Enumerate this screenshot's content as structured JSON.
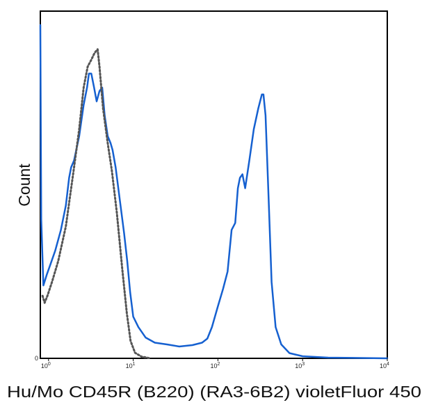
{
  "chart_data": {
    "type": "line",
    "title": "",
    "xlabel": "Hu/Mo CD45R (B220) (RA3-6B2) violetFluor 450",
    "ylabel": "Count",
    "x_scale": "log",
    "xlim": [
      0.8,
      10000
    ],
    "ylim": [
      0,
      100
    ],
    "x_ticks": [
      {
        "value": 1,
        "base": "10",
        "exp": "0"
      },
      {
        "value": 10,
        "base": "10",
        "exp": "1"
      },
      {
        "value": 100,
        "base": "10",
        "exp": "2"
      },
      {
        "value": 1000,
        "base": "10",
        "exp": "3"
      },
      {
        "value": 10000,
        "base": "10",
        "exp": "4"
      }
    ],
    "y_ticks": [
      {
        "value": 0,
        "label": "0"
      }
    ],
    "grid": false,
    "legend": "none",
    "series": [
      {
        "color": "#1560d0",
        "style": "solid",
        "points": [
          [
            0.8,
            96
          ],
          [
            0.82,
            40
          ],
          [
            0.87,
            21
          ],
          [
            0.95,
            24
          ],
          [
            1.05,
            27
          ],
          [
            1.2,
            31
          ],
          [
            1.4,
            37
          ],
          [
            1.6,
            44
          ],
          [
            1.75,
            52
          ],
          [
            1.85,
            55
          ],
          [
            2.0,
            57
          ],
          [
            2.3,
            64
          ],
          [
            2.6,
            73
          ],
          [
            2.85,
            78
          ],
          [
            3.0,
            82
          ],
          [
            3.2,
            82
          ],
          [
            3.45,
            78
          ],
          [
            3.7,
            74
          ],
          [
            4.0,
            77
          ],
          [
            4.3,
            78
          ],
          [
            4.6,
            70
          ],
          [
            5.0,
            64
          ],
          [
            5.4,
            62
          ],
          [
            5.7,
            60
          ],
          [
            6.2,
            55
          ],
          [
            7.0,
            45
          ],
          [
            7.8,
            36
          ],
          [
            8.5,
            28
          ],
          [
            9.2,
            19
          ],
          [
            10.0,
            12
          ],
          [
            11.5,
            9
          ],
          [
            14,
            6
          ],
          [
            18,
            4.5
          ],
          [
            25,
            4
          ],
          [
            35,
            3.4
          ],
          [
            50,
            3.8
          ],
          [
            65,
            4.5
          ],
          [
            75,
            5.7
          ],
          [
            85,
            9
          ],
          [
            100,
            15
          ],
          [
            115,
            20
          ],
          [
            130,
            25
          ],
          [
            145,
            37
          ],
          [
            160,
            39
          ],
          [
            172,
            49
          ],
          [
            182,
            52
          ],
          [
            195,
            53
          ],
          [
            210,
            49
          ],
          [
            235,
            57
          ],
          [
            265,
            66
          ],
          [
            300,
            72
          ],
          [
            330,
            76
          ],
          [
            345,
            76
          ],
          [
            365,
            70
          ],
          [
            400,
            44
          ],
          [
            430,
            22
          ],
          [
            480,
            9
          ],
          [
            560,
            4
          ],
          [
            700,
            1.5
          ],
          [
            1000,
            0.6
          ],
          [
            2000,
            0.2
          ],
          [
            10000,
            0
          ]
        ]
      },
      {
        "color": "#555555",
        "style": "dotted",
        "points": [
          [
            0.85,
            18
          ],
          [
            0.9,
            16
          ],
          [
            0.97,
            18
          ],
          [
            1.1,
            22
          ],
          [
            1.3,
            28
          ],
          [
            1.6,
            38
          ],
          [
            2.0,
            55
          ],
          [
            2.3,
            66
          ],
          [
            2.6,
            78
          ],
          [
            2.9,
            84
          ],
          [
            3.2,
            86
          ],
          [
            3.5,
            88
          ],
          [
            3.8,
            89
          ],
          [
            4.0,
            84
          ],
          [
            4.4,
            72
          ],
          [
            5.0,
            62
          ],
          [
            5.6,
            54
          ],
          [
            6.4,
            42
          ],
          [
            7.4,
            26
          ],
          [
            8.4,
            13
          ],
          [
            9.3,
            5
          ],
          [
            10.5,
            1.6
          ],
          [
            12.5,
            0.5
          ],
          [
            16,
            0
          ]
        ]
      }
    ]
  }
}
